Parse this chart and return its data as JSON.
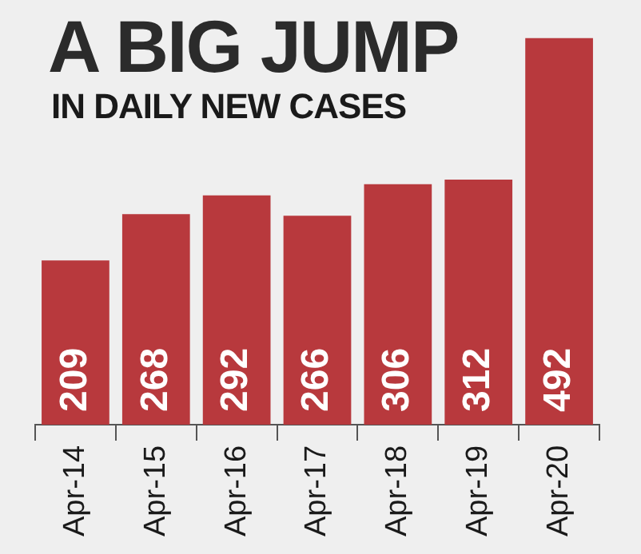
{
  "chart_data": {
    "type": "bar",
    "title": "A BIG JUMP",
    "subtitle": "IN DAILY NEW CASES",
    "categories": [
      "Apr-14",
      "Apr-15",
      "Apr-16",
      "Apr-17",
      "Apr-18",
      "Apr-19",
      "Apr-20"
    ],
    "values": [
      209,
      268,
      292,
      266,
      306,
      312,
      492
    ],
    "color": "#b8393d",
    "data_labels": true,
    "grid": false,
    "legend": false
  }
}
